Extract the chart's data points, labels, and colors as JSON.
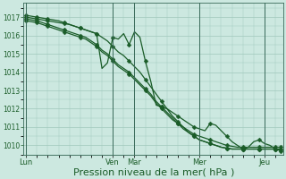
{
  "bg_color": "#cce8e0",
  "grid_color": "#a0c8bc",
  "line_color": "#1a5c28",
  "xlabel": "Pression niveau de la mer( hPa )",
  "xlabel_fontsize": 8,
  "ylim": [
    1009.5,
    1017.8
  ],
  "yticks": [
    1010,
    1011,
    1012,
    1013,
    1014,
    1015,
    1016,
    1017
  ],
  "xtick_labels": [
    "Lun",
    "Ven",
    "Mar",
    "Mer",
    "Jeu"
  ],
  "xtick_positions": [
    0,
    16,
    20,
    32,
    44
  ],
  "total_points": 48,
  "series1": [
    1017.0,
    1016.95,
    1016.9,
    1016.85,
    1016.8,
    1016.75,
    1016.7,
    1016.65,
    1016.6,
    1016.5,
    1016.4,
    1016.3,
    1016.2,
    1016.1,
    1014.2,
    1014.5,
    1015.9,
    1015.8,
    1016.1,
    1015.5,
    1016.2,
    1015.9,
    1014.6,
    1013.5,
    1012.2,
    1012.1,
    1012.0,
    1011.8,
    1011.6,
    1011.4,
    1011.2,
    1011.0,
    1010.9,
    1010.8,
    1011.2,
    1011.1,
    1010.8,
    1010.5,
    1010.2,
    1010.0,
    1009.8,
    1009.9,
    1010.2,
    1010.3,
    1010.1,
    1010.0,
    1009.8,
    1009.7
  ],
  "series2": [
    1016.9,
    1016.85,
    1016.8,
    1016.7,
    1016.6,
    1016.5,
    1016.4,
    1016.3,
    1016.2,
    1016.1,
    1016.0,
    1015.9,
    1015.7,
    1015.5,
    1015.2,
    1015.0,
    1014.7,
    1014.4,
    1014.2,
    1014.0,
    1013.7,
    1013.4,
    1013.1,
    1012.8,
    1012.4,
    1012.1,
    1011.8,
    1011.5,
    1011.2,
    1011.0,
    1010.8,
    1010.6,
    1010.5,
    1010.4,
    1010.3,
    1010.2,
    1010.1,
    1010.0,
    1009.95,
    1009.9,
    1009.9,
    1009.9,
    1009.9,
    1009.9,
    1009.9,
    1009.9,
    1009.9,
    1009.9
  ],
  "series3": [
    1016.8,
    1016.75,
    1016.7,
    1016.6,
    1016.5,
    1016.4,
    1016.3,
    1016.2,
    1016.1,
    1016.0,
    1015.9,
    1015.8,
    1015.6,
    1015.4,
    1015.1,
    1014.9,
    1014.6,
    1014.3,
    1014.1,
    1013.9,
    1013.6,
    1013.3,
    1013.0,
    1012.7,
    1012.3,
    1012.0,
    1011.7,
    1011.4,
    1011.2,
    1010.9,
    1010.7,
    1010.5,
    1010.3,
    1010.2,
    1010.1,
    1010.0,
    1009.9,
    1009.85,
    1009.8,
    1009.8,
    1009.8,
    1009.8,
    1009.8,
    1009.8,
    1009.8,
    1009.8,
    1009.8,
    1009.8
  ],
  "series4": [
    1017.1,
    1017.05,
    1017.0,
    1016.95,
    1016.9,
    1016.85,
    1016.8,
    1016.7,
    1016.6,
    1016.5,
    1016.4,
    1016.3,
    1016.2,
    1016.1,
    1015.9,
    1015.7,
    1015.4,
    1015.1,
    1014.9,
    1014.6,
    1014.3,
    1014.0,
    1013.6,
    1013.2,
    1012.8,
    1012.4,
    1012.0,
    1011.6,
    1011.3,
    1011.0,
    1010.7,
    1010.5,
    1010.3,
    1010.2,
    1010.1,
    1010.0,
    1009.9,
    1009.85,
    1009.8,
    1009.8,
    1009.8,
    1009.8,
    1009.8,
    1009.8,
    1009.8,
    1009.8,
    1009.8,
    1009.8
  ],
  "marker_every": [
    0,
    2,
    4,
    7,
    10,
    13,
    16,
    19,
    22,
    25,
    28,
    31,
    34,
    37,
    40,
    43,
    46,
    47
  ]
}
